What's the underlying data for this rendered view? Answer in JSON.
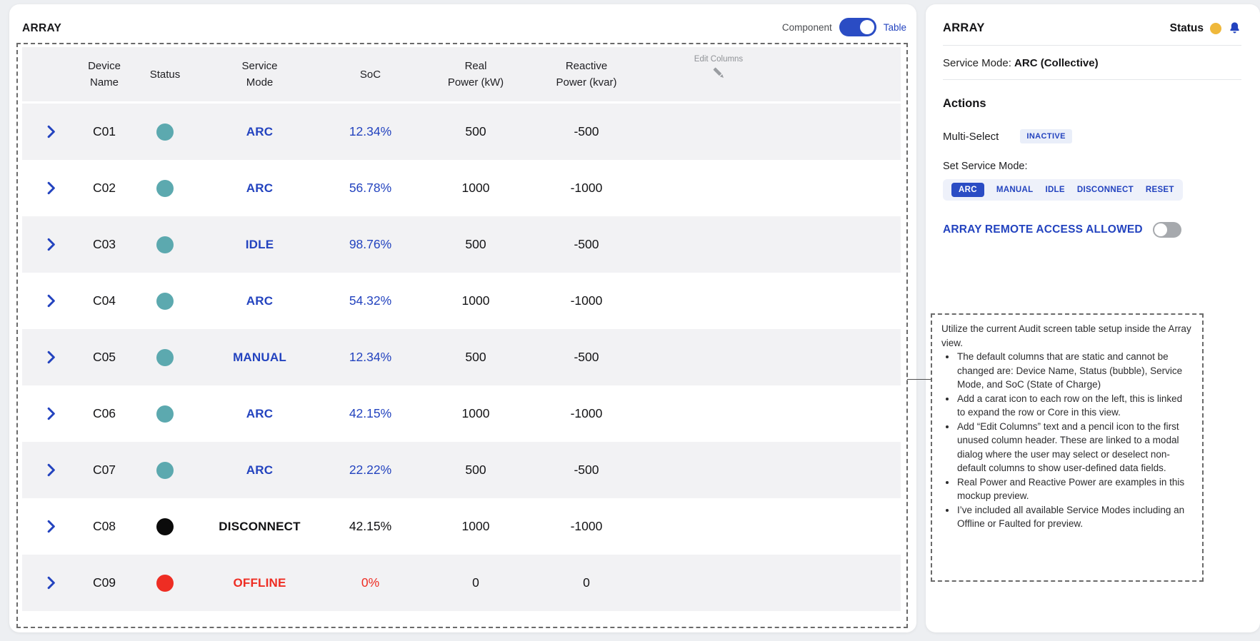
{
  "colors": {
    "accent_blue": "#2343bf",
    "toggle_on_blue": "#2a4cc4",
    "teal_status": "#5CA9AF",
    "black_status": "#0b0b0b",
    "red_status": "#ee2d23",
    "yellow_status": "#efb83b",
    "row_stripe_gray": "#f2f2f4",
    "page_background": "#edeff2"
  },
  "left_card": {
    "title": "ARRAY",
    "view_toggle": {
      "left_label": "Component",
      "right_label": "Table",
      "state": "Table"
    },
    "table": {
      "columns": [
        {
          "l1": "Device",
          "l2": "Name"
        },
        {
          "l1": "Status",
          "l2": ""
        },
        {
          "l1": "Service",
          "l2": "Mode"
        },
        {
          "l1": "SoC",
          "l2": ""
        },
        {
          "l1": "Real",
          "l2": "Power (kW)"
        },
        {
          "l1": "Reactive",
          "l2": "Power (kvar)"
        }
      ],
      "edit_columns_label": "Edit Columns",
      "rows": [
        {
          "name": "C01",
          "status_color": "#5CA9AF",
          "mode": "ARC",
          "mode_style": "blue",
          "soc": "12.34%",
          "soc_style": "blue",
          "real": "500",
          "reactive": "-500"
        },
        {
          "name": "C02",
          "status_color": "#5CA9AF",
          "mode": "ARC",
          "mode_style": "blue",
          "soc": "56.78%",
          "soc_style": "blue",
          "real": "1000",
          "reactive": "-1000"
        },
        {
          "name": "C03",
          "status_color": "#5CA9AF",
          "mode": "IDLE",
          "mode_style": "blue",
          "soc": "98.76%",
          "soc_style": "blue",
          "real": "500",
          "reactive": "-500"
        },
        {
          "name": "C04",
          "status_color": "#5CA9AF",
          "mode": "ARC",
          "mode_style": "blue",
          "soc": "54.32%",
          "soc_style": "blue",
          "real": "1000",
          "reactive": "-1000"
        },
        {
          "name": "C05",
          "status_color": "#5CA9AF",
          "mode": "MANUAL",
          "mode_style": "blue",
          "soc": "12.34%",
          "soc_style": "blue",
          "real": "500",
          "reactive": "-500"
        },
        {
          "name": "C06",
          "status_color": "#5CA9AF",
          "mode": "ARC",
          "mode_style": "blue",
          "soc": "42.15%",
          "soc_style": "blue",
          "real": "1000",
          "reactive": "-1000"
        },
        {
          "name": "C07",
          "status_color": "#5CA9AF",
          "mode": "ARC",
          "mode_style": "blue",
          "soc": "22.22%",
          "soc_style": "blue",
          "real": "500",
          "reactive": "-500"
        },
        {
          "name": "C08",
          "status_color": "#0b0b0b",
          "mode": "DISCONNECT",
          "mode_style": "dark",
          "soc": "42.15%",
          "soc_style": "dark",
          "real": "1000",
          "reactive": "-1000"
        },
        {
          "name": "C09",
          "status_color": "#ee2d23",
          "mode": "OFFLINE",
          "mode_style": "red",
          "soc": "0%",
          "soc_style": "red",
          "real": "0",
          "reactive": "0"
        }
      ]
    }
  },
  "right_card": {
    "title": "ARRAY",
    "status_label": "Status",
    "service_mode_label": "Service Mode:",
    "service_mode_value": "ARC (Collective)",
    "actions_title": "Actions",
    "multi_select_label": "Multi-Select",
    "multi_select_state": "INACTIVE",
    "set_service_mode_label": "Set Service Mode:",
    "mode_buttons": [
      "ARC",
      "MANUAL",
      "IDLE",
      "DISCONNECT",
      "RESET"
    ],
    "selected_mode": "ARC",
    "remote_access_label": "ARRAY REMOTE ACCESS ALLOWED",
    "remote_access_state": "off",
    "note": {
      "intro": "Utilize the current Audit screen table setup inside the Array view.",
      "bullets": [
        "The default columns that are static and cannot be changed are: Device Name, Status (bubble), Service Mode, and SoC (State of Charge)",
        "Add a carat icon to each row on the left, this is linked to expand the row or Core in this view.",
        "Add “Edit Columns” text and a pencil icon to the first unused column header. These are linked to a modal dialog where the user may select or deselect non-default columns to show user-defined data fields.",
        "Real Power and Reactive Power are examples in this mockup preview.",
        "I’ve included all available Service Modes including an Offline or Faulted for preview."
      ]
    }
  }
}
